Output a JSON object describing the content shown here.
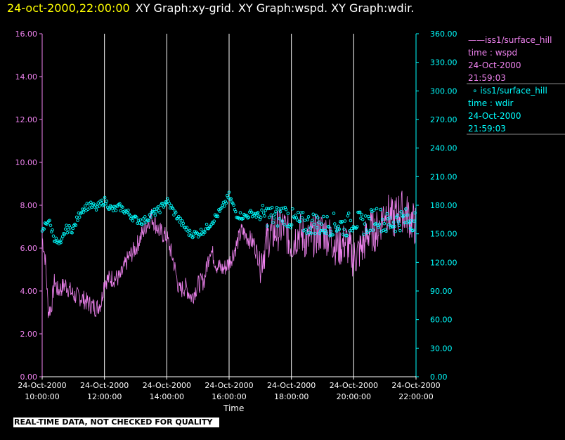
{
  "header": {
    "timestamp": "24-oct-2000,22:00:00",
    "graphs": "XY Graph:xy-grid.  XY Graph:wspd.  XY Graph:wdir."
  },
  "banner": "REAL-TIME DATA, NOT CHECKED FOR QUALITY",
  "colors": {
    "wspd": "#ee82ee",
    "wdir": "#00ffff",
    "grid": "#ffffff",
    "header_time": "#ffff00",
    "background": "#000000"
  },
  "legend": {
    "wspd": {
      "name": "iss1/surface_hill",
      "var": "time : wspd",
      "date": "24-Oct-2000",
      "time": "21:59:03"
    },
    "wdir": {
      "name": "iss1/surface_hill",
      "var": "time : wdir",
      "date": "24-Oct-2000",
      "time": "21:59:03"
    }
  },
  "chart_data": {
    "type": "line",
    "xlabel": "Time",
    "x_range": [
      "2000-10-24 10:00",
      "2000-10-24 22:00"
    ],
    "x_ticks": [
      {
        "date": "24-Oct-2000",
        "time": "10:00:00"
      },
      {
        "date": "24-Oct-2000",
        "time": "12:00:00"
      },
      {
        "date": "24-Oct-2000",
        "time": "14:00:00"
      },
      {
        "date": "24-Oct-2000",
        "time": "16:00:00"
      },
      {
        "date": "24-Oct-2000",
        "time": "18:00:00"
      },
      {
        "date": "24-Oct-2000",
        "time": "20:00:00"
      },
      {
        "date": "24-Oct-2000",
        "time": "22:00:00"
      }
    ],
    "left_axis": {
      "ylim": [
        0,
        16
      ],
      "ticks": [
        "0.00",
        "2.00",
        "4.00",
        "6.00",
        "8.00",
        "10.00",
        "12.00",
        "14.00",
        "16.00"
      ]
    },
    "right_axis": {
      "ylim": [
        0,
        360
      ],
      "ticks": [
        "0.00",
        "30.00",
        "60.00",
        "90.00",
        "120.00",
        "150.00",
        "180.00",
        "210.00",
        "240.00",
        "270.00",
        "300.00",
        "330.00",
        "360.00"
      ]
    },
    "grid": "vertical lines at x ticks",
    "series": [
      {
        "key": "wspd",
        "style": "line",
        "axis": "left",
        "x_hours": [
          10.0,
          10.1,
          10.2,
          10.3,
          10.4,
          10.5,
          10.75,
          11.0,
          11.25,
          11.5,
          11.75,
          11.9,
          12.0,
          12.25,
          12.5,
          12.75,
          13.0,
          13.25,
          13.5,
          13.75,
          14.0,
          14.2,
          14.4,
          14.6,
          14.8,
          15.0,
          15.2,
          15.4,
          15.6,
          15.8,
          16.0,
          16.2,
          16.4,
          16.6,
          16.8,
          17.0,
          17.25,
          17.5,
          17.75,
          18.0,
          18.25,
          18.5,
          18.75,
          19.0,
          19.25,
          19.5,
          19.75,
          20.0,
          20.25,
          20.5,
          20.75,
          21.0,
          21.25,
          21.5,
          21.75,
          22.0
        ],
        "values": [
          6.5,
          5.5,
          3.0,
          3.3,
          4.5,
          4.0,
          4.3,
          3.8,
          3.7,
          3.4,
          3.2,
          3.5,
          4.5,
          4.6,
          4.6,
          5.5,
          6.0,
          6.8,
          7.5,
          6.8,
          6.5,
          5.5,
          4.0,
          4.2,
          3.7,
          4.3,
          4.5,
          6.0,
          5.2,
          5.0,
          5.3,
          6.0,
          6.8,
          6.5,
          6.2,
          5.3,
          6.5,
          6.8,
          7.0,
          6.2,
          6.8,
          6.3,
          6.6,
          6.8,
          6.5,
          6.0,
          6.3,
          5.5,
          6.0,
          6.8,
          6.8,
          7.8,
          7.3,
          7.8,
          7.5,
          7.0
        ]
      },
      {
        "key": "wdir",
        "style": "scatter",
        "axis": "right",
        "x_hours": [
          10.0,
          10.1,
          10.2,
          10.3,
          10.4,
          10.5,
          10.6,
          10.75,
          11.0,
          11.25,
          11.5,
          11.75,
          12.0,
          12.25,
          12.5,
          12.75,
          13.0,
          13.25,
          13.5,
          13.75,
          14.0,
          14.25,
          14.5,
          14.75,
          15.0,
          15.25,
          15.5,
          15.75,
          16.0,
          16.25,
          16.5,
          16.75,
          17.0,
          17.25,
          17.5,
          17.75,
          18.0,
          18.25,
          18.5,
          18.75,
          19.0,
          19.25,
          19.5,
          19.75,
          20.0,
          20.25,
          20.5,
          20.75,
          21.0,
          21.25,
          21.5,
          21.75,
          22.0
        ],
        "values": [
          150,
          160,
          165,
          155,
          145,
          140,
          138,
          155,
          155,
          175,
          180,
          177,
          185,
          175,
          178,
          172,
          165,
          163,
          170,
          175,
          185,
          172,
          160,
          150,
          150,
          155,
          165,
          175,
          190,
          170,
          168,
          172,
          168,
          170,
          167,
          172,
          165,
          162,
          160,
          162,
          158,
          160,
          160,
          158,
          165,
          160,
          162,
          170,
          160,
          162,
          165,
          165,
          165
        ]
      }
    ]
  }
}
